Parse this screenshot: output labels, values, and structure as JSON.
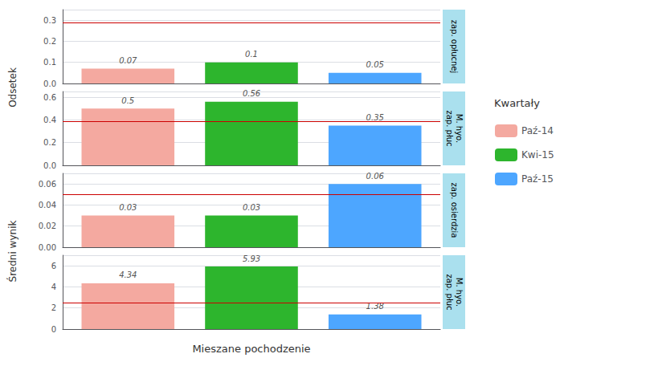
{
  "chart_data": [
    {
      "type": "bar",
      "title": "zap. opłucnej",
      "ylabel": "Odsetek",
      "categories": [
        null
      ],
      "series": [
        {
          "name": "Paź-14",
          "color": "#F4A9A0",
          "values": [
            0.07
          ]
        },
        {
          "name": "Kwi-15",
          "color": "#2DB52D",
          "values": [
            0.1
          ]
        },
        {
          "name": "Paź-15",
          "color": "#4DA6FF",
          "values": [
            0.05
          ]
        }
      ],
      "ylim": [
        0.0,
        0.35
      ],
      "yticks": [
        {
          "value": 0.0,
          "label": "0.0"
        },
        0.1,
        0.2,
        0.3
      ],
      "hline": {
        "value": 0.29,
        "color": "#CC0000"
      },
      "data_labels": true,
      "tick_labels": "y",
      "grid": true,
      "legend": "right",
      "legend_title": "Kwartały"
    },
    {
      "type": "bar",
      "title": "M. hyo.\nzap. płuc",
      "ylabel": "Odsetek",
      "categories": [
        null
      ],
      "series": [
        {
          "name": "Paź-14",
          "color": "#F4A9A0",
          "values": [
            0.5
          ]
        },
        {
          "name": "Kwi-15",
          "color": "#2DB52D",
          "values": [
            0.56
          ]
        },
        {
          "name": "Paź-15",
          "color": "#4DA6FF",
          "values": [
            0.35
          ]
        }
      ],
      "ylim": [
        0.0,
        0.65
      ],
      "yticks": [
        {
          "value": 0.0,
          "label": "0.0"
        },
        0.2,
        0.4,
        0.6
      ],
      "hline": {
        "value": 0.39,
        "color": "#CC0000"
      },
      "data_labels": true,
      "tick_labels": "y",
      "grid": true
    },
    {
      "type": "bar",
      "title": "zap. osierdzia",
      "ylabel": "Średni wynik",
      "categories": [
        null
      ],
      "series": [
        {
          "name": "Paź-14",
          "color": "#F4A9A0",
          "values": [
            0.03
          ]
        },
        {
          "name": "Kwi-15",
          "color": "#2DB52D",
          "values": [
            0.03
          ]
        },
        {
          "name": "Paź-15",
          "color": "#4DA6FF",
          "values": [
            0.06
          ]
        }
      ],
      "ylim": [
        0.0,
        0.07
      ],
      "yticks": [
        {
          "value": 0.0,
          "label": "0.00"
        },
        0.02,
        0.04,
        0.06
      ],
      "hline": {
        "value": 0.05,
        "color": "#CC0000"
      },
      "data_labels": true,
      "tick_labels": "y",
      "grid": true
    },
    {
      "type": "bar",
      "title": "M. hyo.\nzap. płuc",
      "ylabel": "Średni wynik",
      "xlabel": "Mieszane pochodzenie",
      "categories": [
        null
      ],
      "series": [
        {
          "name": "Paź-14",
          "color": "#F4A9A0",
          "values": [
            4.34
          ]
        },
        {
          "name": "Kwi-15",
          "color": "#2DB52D",
          "values": [
            5.93
          ]
        },
        {
          "name": "Paź-15",
          "color": "#4DA6FF",
          "values": [
            1.38
          ]
        }
      ],
      "ylim": [
        0.0,
        7.0
      ],
      "yticks": [
        0,
        2,
        4,
        6
      ],
      "hline": {
        "value": 2.5,
        "color": "#CC0000"
      },
      "data_labels": true,
      "tick_labels": "y",
      "grid": true
    }
  ]
}
